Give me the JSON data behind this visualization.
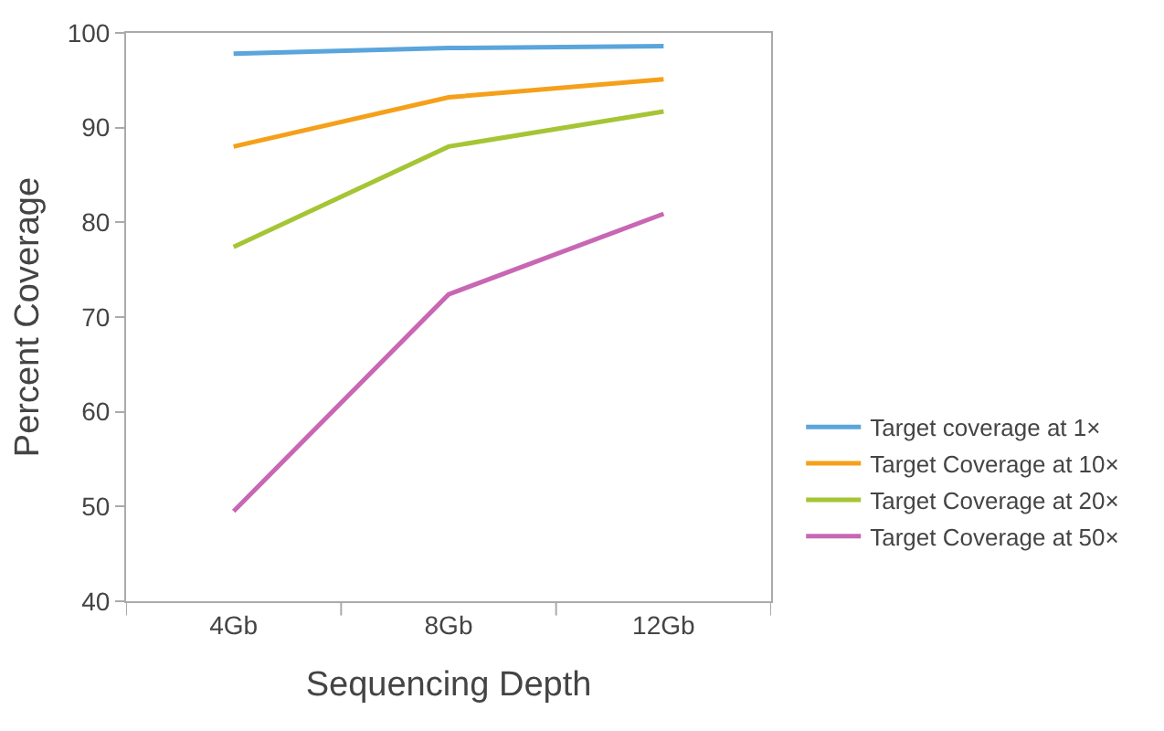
{
  "chart_data": {
    "type": "line",
    "xlabel": "Sequencing Depth",
    "ylabel": "Percent Coverage",
    "categories": [
      "4Gb",
      "8Gb",
      "12Gb"
    ],
    "ylim": [
      40,
      100
    ],
    "yticks": [
      40,
      50,
      60,
      70,
      80,
      90,
      100
    ],
    "grid": false,
    "legend": "right",
    "marker": "none",
    "line_style": "solid",
    "series": [
      {
        "name": "Target coverage at 1×",
        "color": "#5aa5dc",
        "values": [
          97.8,
          98.4,
          98.6
        ]
      },
      {
        "name": "Target Coverage at 10×",
        "color": "#f5a01a",
        "values": [
          88,
          93.2,
          95.1
        ]
      },
      {
        "name": "Target Coverage at 20×",
        "color": "#a5c535",
        "values": [
          77.4,
          88,
          91.7
        ]
      },
      {
        "name": "Target Coverage at 50×",
        "color": "#c867b4",
        "values": [
          49.5,
          72.4,
          80.9
        ]
      }
    ]
  }
}
